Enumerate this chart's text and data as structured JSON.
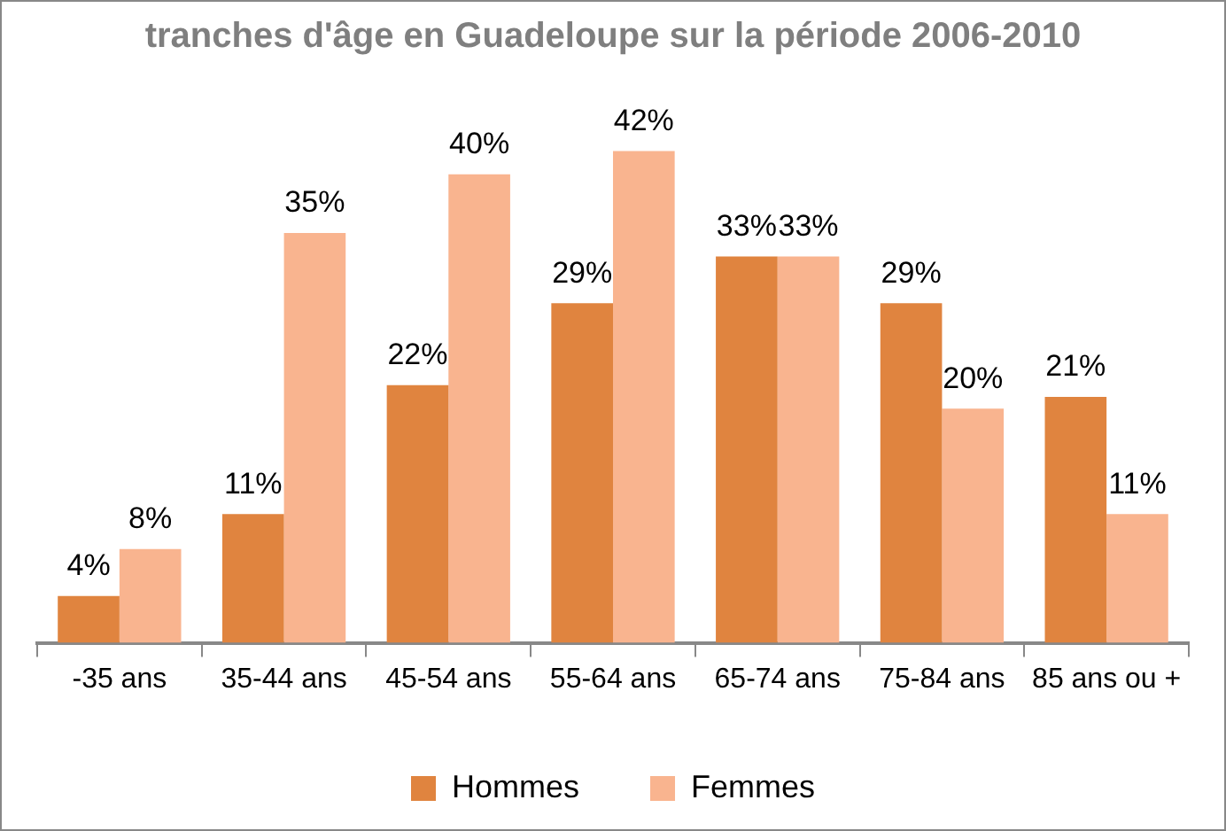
{
  "chart_data": {
    "type": "bar",
    "title": "tranches d'âge en Guadeloupe sur la période 2006-2010",
    "categories": [
      "-35 ans",
      "35-44 ans",
      "45-54 ans",
      "55-64 ans",
      "65-74 ans",
      "75-84 ans",
      "85 ans ou +"
    ],
    "series": [
      {
        "name": "Hommes",
        "color": "#e0843f",
        "values": [
          4,
          11,
          22,
          29,
          33,
          29,
          21
        ],
        "value_labels": [
          "4%",
          "11%",
          "22%",
          "29%",
          "33%",
          "29%",
          "21%"
        ]
      },
      {
        "name": "Femmes",
        "color": "#f9b48f",
        "values": [
          8,
          35,
          40,
          42,
          33,
          20,
          11
        ],
        "value_labels": [
          "8%",
          "35%",
          "40%",
          "42%",
          "33%",
          "20%",
          "11%"
        ]
      }
    ],
    "legend": "bottom",
    "grid": false
  }
}
